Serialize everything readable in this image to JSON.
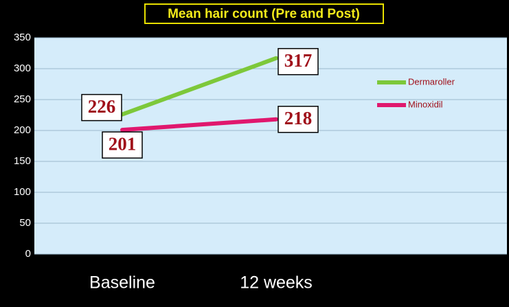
{
  "chart_data": {
    "type": "line",
    "title": "Mean hair count  (Pre  and  Post)",
    "categories": [
      "Baseline",
      "12 weeks"
    ],
    "series": [
      {
        "name": "Dermaroller",
        "color": "#7dc83a",
        "values": [
          226,
          317
        ]
      },
      {
        "name": "Minoxidil",
        "color": "#e0186e",
        "values": [
          201,
          218
        ]
      }
    ],
    "ylim": [
      0,
      350
    ],
    "yticks": [
      0,
      50,
      100,
      150,
      200,
      250,
      300,
      350
    ],
    "grid": true,
    "legend": "right"
  }
}
